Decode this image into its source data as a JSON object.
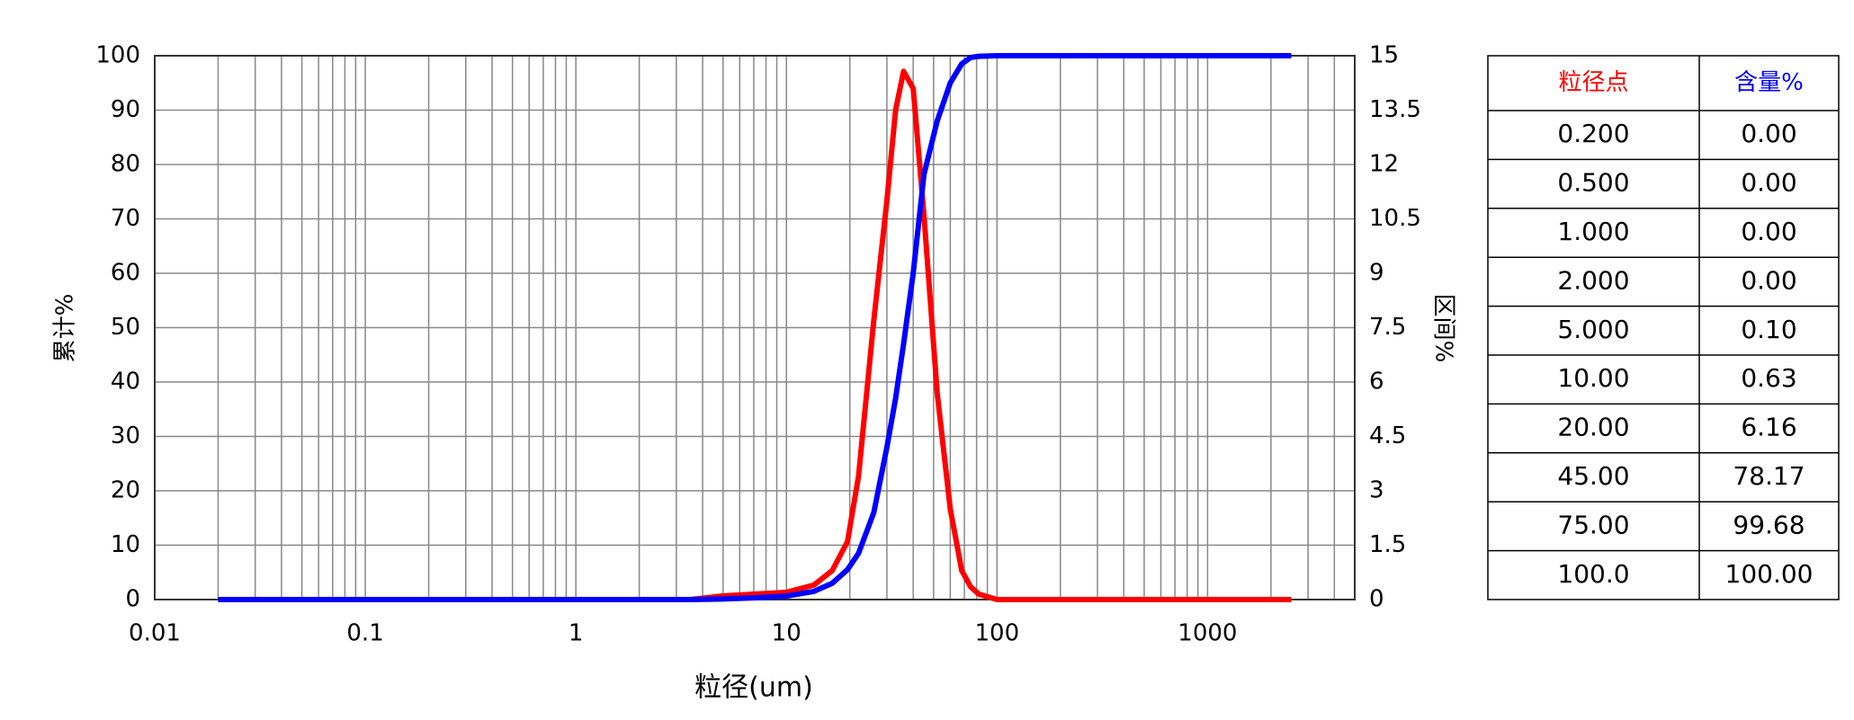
{
  "chart_data": {
    "type": "line",
    "x_label": "粒径(um)",
    "y_label": "累计%",
    "y2_label": "区间%",
    "x_scale": "log",
    "xlim": [
      0.01,
      5000
    ],
    "xticks": [
      0.01,
      0.1,
      1,
      10,
      100,
      1000
    ],
    "xgrid_minor": [
      0.02,
      0.03,
      0.04,
      0.05,
      0.06,
      0.07,
      0.08,
      0.09,
      0.2,
      0.3,
      0.4,
      0.5,
      0.6,
      0.7,
      0.8,
      0.9,
      2,
      3,
      4,
      5,
      6,
      7,
      8,
      9,
      20,
      30,
      40,
      50,
      60,
      70,
      80,
      90,
      200,
      300,
      400,
      500,
      600,
      700,
      800,
      900,
      2000,
      3000,
      4000
    ],
    "ylim": [
      0,
      100
    ],
    "yticks": [
      0,
      10,
      20,
      30,
      40,
      50,
      60,
      70,
      80,
      90,
      100
    ],
    "y2lim": [
      0,
      15
    ],
    "y2ticks": [
      0,
      1.5,
      3,
      4.5,
      6,
      7.5,
      9,
      10.5,
      12,
      13.5,
      15
    ],
    "grid": true,
    "x": [
      0.02,
      0.1,
      1,
      3.5,
      5,
      7,
      10,
      13.5,
      16.5,
      19.5,
      22,
      26,
      30,
      33,
      36,
      40,
      45,
      52,
      60,
      68,
      75,
      82,
      100,
      1000,
      2500
    ],
    "series": [
      {
        "color": "#ff0000",
        "axis": "y2",
        "values": [
          0,
          0,
          0,
          0,
          0.1,
          0.15,
          0.2,
          0.4,
          0.8,
          1.6,
          3.4,
          7.7,
          11,
          13.5,
          14.57,
          14.1,
          10.6,
          5.7,
          2.5,
          0.8,
          0.35,
          0.15,
          0,
          0,
          0
        ]
      },
      {
        "color": "#0000ff",
        "values": [
          0,
          0,
          0,
          0,
          0.1,
          0.3,
          0.63,
          1.5,
          3,
          5.5,
          8.5,
          16,
          28,
          37,
          47,
          60,
          78.17,
          88,
          95,
          98.5,
          99.68,
          99.9,
          100,
          100,
          100
        ]
      }
    ]
  },
  "table": {
    "header": [
      "粒径点",
      "含量%"
    ],
    "header_colors": [
      "#ff0000",
      "#0000ff"
    ],
    "rows": [
      [
        "0.200",
        "0.00"
      ],
      [
        "0.500",
        "0.00"
      ],
      [
        "1.000",
        "0.00"
      ],
      [
        "2.000",
        "0.00"
      ],
      [
        "5.000",
        "0.10"
      ],
      [
        "10.00",
        "0.63"
      ],
      [
        "20.00",
        "6.16"
      ],
      [
        "45.00",
        "78.17"
      ],
      [
        "75.00",
        "99.68"
      ],
      [
        "100.0",
        "100.00"
      ]
    ]
  }
}
